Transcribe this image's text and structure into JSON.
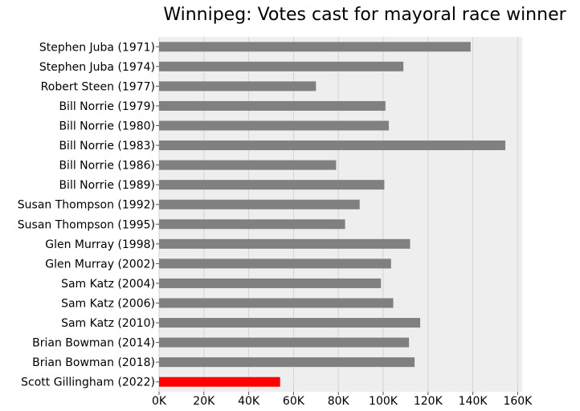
{
  "chart_data": {
    "type": "bar",
    "orientation": "horizontal",
    "title": "Winnipeg: Votes cast for mayoral race winner",
    "xlabel": "",
    "ylabel": "",
    "xlim": [
      0,
      162000
    ],
    "x_ticks": [
      0,
      20000,
      40000,
      60000,
      80000,
      100000,
      120000,
      140000,
      160000
    ],
    "x_tick_labels": [
      "0K",
      "20K",
      "40K",
      "60K",
      "80K",
      "100K",
      "120K",
      "140K",
      "160K"
    ],
    "grid": true,
    "categories": [
      "Stephen Juba (1971)",
      "Stephen Juba (1974)",
      "Robert Steen (1977)",
      "Bill Norrie (1979)",
      "Bill Norrie (1980)",
      "Bill Norrie (1983)",
      "Bill Norrie (1986)",
      "Bill Norrie (1989)",
      "Susan Thompson (1992)",
      "Susan Thompson (1995)",
      "Glen Murray (1998)",
      "Glen Murray (2002)",
      "Sam Katz (2004)",
      "Sam Katz (2006)",
      "Sam Katz (2010)",
      "Brian Bowman (2014)",
      "Brian Bowman (2018)",
      "Scott Gillingham (2022)"
    ],
    "values": [
      139000,
      109000,
      70000,
      101000,
      102500,
      154500,
      79000,
      100500,
      89500,
      83000,
      112000,
      103500,
      99000,
      104500,
      116500,
      111500,
      114000,
      54000
    ],
    "highlight_index": 17,
    "bar_color": "#808080",
    "highlight_color": "#ff0000",
    "plot_background": "#eeeeee"
  }
}
